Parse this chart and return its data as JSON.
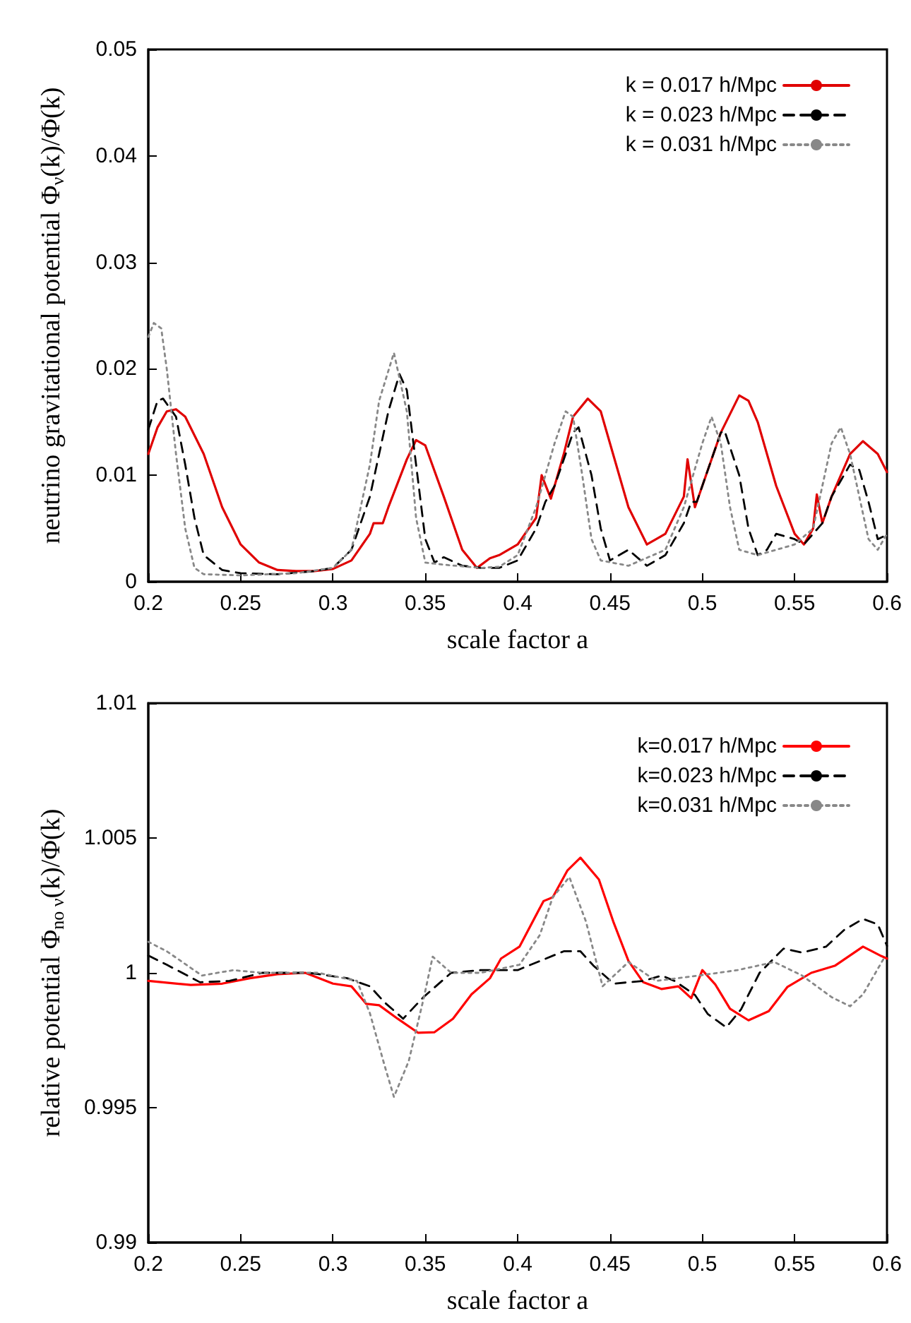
{
  "chart_data": [
    {
      "type": "line",
      "xlabel": "scale factor a",
      "ylabel": "neutrino gravitational potential Φ$_{ν}$(k)/Φ(k)",
      "xlim": [
        0.2,
        0.6
      ],
      "xticks": [
        0.2,
        0.25,
        0.3,
        0.35,
        0.4,
        0.45,
        0.5,
        0.55,
        0.6
      ],
      "ylim": [
        0,
        0.05
      ],
      "yticks": [
        0,
        0.01,
        0.02,
        0.03,
        0.04,
        0.05
      ],
      "grid": false,
      "legend": "top right",
      "marker": "none",
      "series": [
        {
          "name": "k = 0.017 h/Mpc",
          "color": "#e00000",
          "line_style": "solid",
          "x": [
            0.2,
            0.205,
            0.21,
            0.215,
            0.22,
            0.23,
            0.24,
            0.25,
            0.26,
            0.27,
            0.28,
            0.29,
            0.3,
            0.31,
            0.32,
            0.322,
            0.327,
            0.33,
            0.34,
            0.345,
            0.35,
            0.36,
            0.37,
            0.378,
            0.385,
            0.39,
            0.4,
            0.41,
            0.413,
            0.418,
            0.425,
            0.43,
            0.438,
            0.445,
            0.45,
            0.46,
            0.47,
            0.48,
            0.49,
            0.492,
            0.496,
            0.5,
            0.51,
            0.52,
            0.525,
            0.53,
            0.54,
            0.55,
            0.555,
            0.56,
            0.562,
            0.565,
            0.57,
            0.58,
            0.587,
            0.595,
            0.6
          ],
          "values": [
            0.012,
            0.0145,
            0.016,
            0.0162,
            0.0155,
            0.012,
            0.007,
            0.0035,
            0.0018,
            0.0011,
            0.001,
            0.001,
            0.0012,
            0.002,
            0.0045,
            0.0055,
            0.0055,
            0.007,
            0.0115,
            0.0133,
            0.0128,
            0.008,
            0.003,
            0.0013,
            0.0022,
            0.0025,
            0.0035,
            0.006,
            0.01,
            0.0078,
            0.012,
            0.0155,
            0.0172,
            0.016,
            0.013,
            0.007,
            0.0035,
            0.0045,
            0.008,
            0.0115,
            0.007,
            0.009,
            0.014,
            0.0175,
            0.017,
            0.015,
            0.009,
            0.0045,
            0.0035,
            0.005,
            0.0082,
            0.0055,
            0.008,
            0.012,
            0.0132,
            0.012,
            0.0103
          ]
        },
        {
          "name": "k = 0.023 h/Mpc",
          "color": "#000000",
          "line_style": "dashed",
          "x": [
            0.2,
            0.205,
            0.208,
            0.215,
            0.22,
            0.225,
            0.23,
            0.24,
            0.25,
            0.27,
            0.29,
            0.3,
            0.31,
            0.32,
            0.33,
            0.336,
            0.34,
            0.345,
            0.35,
            0.355,
            0.36,
            0.37,
            0.38,
            0.39,
            0.4,
            0.41,
            0.415,
            0.42,
            0.43,
            0.433,
            0.44,
            0.445,
            0.45,
            0.455,
            0.46,
            0.47,
            0.48,
            0.49,
            0.494,
            0.497,
            0.5,
            0.51,
            0.512,
            0.52,
            0.525,
            0.53,
            0.535,
            0.54,
            0.55,
            0.555,
            0.565,
            0.57,
            0.575,
            0.58,
            0.585,
            0.59,
            0.595,
            0.6
          ],
          "values": [
            0.0143,
            0.017,
            0.0172,
            0.0155,
            0.011,
            0.006,
            0.0025,
            0.0011,
            0.0008,
            0.0007,
            0.001,
            0.0013,
            0.003,
            0.008,
            0.016,
            0.0195,
            0.018,
            0.011,
            0.004,
            0.0018,
            0.0023,
            0.0015,
            0.0013,
            0.0013,
            0.002,
            0.005,
            0.0075,
            0.009,
            0.014,
            0.0145,
            0.01,
            0.005,
            0.002,
            0.0025,
            0.003,
            0.0015,
            0.0025,
            0.0055,
            0.0075,
            0.0075,
            0.009,
            0.014,
            0.0142,
            0.01,
            0.005,
            0.0025,
            0.003,
            0.0045,
            0.004,
            0.0035,
            0.0055,
            0.008,
            0.0095,
            0.011,
            0.0105,
            0.0075,
            0.004,
            0.0044
          ]
        },
        {
          "name": "k = 0.031 h/Mpc",
          "color": "#888888",
          "line_style": "dotted",
          "x": [
            0.2,
            0.203,
            0.207,
            0.21,
            0.215,
            0.22,
            0.225,
            0.23,
            0.25,
            0.28,
            0.3,
            0.31,
            0.32,
            0.325,
            0.333,
            0.34,
            0.345,
            0.35,
            0.36,
            0.38,
            0.39,
            0.4,
            0.41,
            0.42,
            0.426,
            0.43,
            0.435,
            0.44,
            0.445,
            0.46,
            0.48,
            0.49,
            0.5,
            0.505,
            0.51,
            0.515,
            0.52,
            0.53,
            0.55,
            0.56,
            0.565,
            0.57,
            0.575,
            0.58,
            0.585,
            0.59,
            0.595,
            0.6
          ],
          "values": [
            0.023,
            0.0243,
            0.0238,
            0.02,
            0.012,
            0.005,
            0.0013,
            0.0007,
            0.0006,
            0.0008,
            0.0013,
            0.003,
            0.011,
            0.017,
            0.0215,
            0.016,
            0.006,
            0.0018,
            0.0016,
            0.0013,
            0.0014,
            0.0025,
            0.007,
            0.013,
            0.016,
            0.0155,
            0.01,
            0.004,
            0.002,
            0.0015,
            0.003,
            0.007,
            0.013,
            0.0155,
            0.013,
            0.007,
            0.003,
            0.0025,
            0.0035,
            0.005,
            0.009,
            0.013,
            0.0145,
            0.012,
            0.008,
            0.004,
            0.003,
            0.0045
          ]
        }
      ]
    },
    {
      "type": "line",
      "xlabel": "scale factor a",
      "ylabel": "relative potential Φ$_{no ν}$(k)/Φ(k)",
      "xlim": [
        0.2,
        0.6
      ],
      "xticks": [
        0.2,
        0.25,
        0.3,
        0.35,
        0.4,
        0.45,
        0.5,
        0.55,
        0.6
      ],
      "ylim": [
        0.99,
        1.01
      ],
      "yticks": [
        0.99,
        0.995,
        1,
        1.005,
        1.01
      ],
      "grid": false,
      "legend": "top right",
      "marker": "none",
      "series": [
        {
          "name": "k=0.017 h/Mpc",
          "color": "#ff0000",
          "line_style": "solid",
          "x": [
            0.2,
            0.223,
            0.24,
            0.255,
            0.27,
            0.285,
            0.3,
            0.31,
            0.318,
            0.325,
            0.335,
            0.346,
            0.355,
            0.365,
            0.375,
            0.385,
            0.391,
            0.401,
            0.414,
            0.419,
            0.427,
            0.434,
            0.444,
            0.452,
            0.46,
            0.468,
            0.478,
            0.487,
            0.494,
            0.5,
            0.507,
            0.515,
            0.525,
            0.536,
            0.546,
            0.559,
            0.572,
            0.587,
            0.597,
            0.6
          ],
          "values": [
            0.9997,
            0.99955,
            0.9996,
            0.9998,
            0.99995,
            1.0,
            0.9996,
            0.9995,
            0.99885,
            0.9988,
            0.9983,
            0.99778,
            0.9978,
            0.9983,
            0.9992,
            0.9998,
            1.00053,
            1.00097,
            1.00266,
            1.0028,
            1.0038,
            1.00427,
            1.00346,
            1.00186,
            1.00044,
            0.99965,
            0.9994,
            0.9995,
            0.99906,
            1.0001,
            0.99957,
            0.99867,
            0.99824,
            0.99858,
            0.99947,
            1.0,
            1.00027,
            1.00097,
            1.00062,
            1.00053
          ]
        },
        {
          "name": "k=0.023 h/Mpc",
          "color": "#000000",
          "line_style": "dashed",
          "x": [
            0.2,
            0.21,
            0.228,
            0.244,
            0.2615,
            0.287,
            0.3077,
            0.32,
            0.328,
            0.338,
            0.349,
            0.364,
            0.38,
            0.4,
            0.406,
            0.425,
            0.434,
            0.441,
            0.452,
            0.468,
            0.478,
            0.485,
            0.496,
            0.503,
            0.513,
            0.521,
            0.531,
            0.544,
            0.554,
            0.567,
            0.577,
            0.587,
            0.595,
            0.6
          ],
          "values": [
            1.00064,
            1.0003,
            0.99965,
            0.9997,
            1.0,
            1.0,
            0.9998,
            0.9995,
            0.9989,
            0.9983,
            0.9991,
            1.0,
            1.0001,
            1.0001,
            1.00027,
            1.0008,
            1.0008,
            1.00027,
            0.9996,
            0.9997,
            0.9999,
            0.9997,
            0.99918,
            0.99847,
            0.99798,
            0.99865,
            1.0,
            1.0009,
            1.00075,
            1.00097,
            1.0016,
            1.002,
            1.0018,
            1.001
          ]
        },
        {
          "name": "k=0.031 h/Mpc",
          "color": "#888888",
          "line_style": "dotted",
          "x": [
            0.2,
            0.21,
            0.229,
            0.246,
            0.2615,
            0.292,
            0.313,
            0.32,
            0.328,
            0.333,
            0.341,
            0.349,
            0.354,
            0.364,
            0.38,
            0.401,
            0.412,
            0.419,
            0.428,
            0.437,
            0.446,
            0.46,
            0.475,
            0.498,
            0.519,
            0.539,
            0.554,
            0.57,
            0.58,
            0.587,
            0.598,
            0.6
          ],
          "values": [
            1.00115,
            1.0008,
            0.9999,
            1.0001,
            1.0,
            1.0,
            0.9997,
            0.9985,
            0.99655,
            0.9954,
            0.99672,
            0.99902,
            1.0006,
            1.0,
            1.0,
            1.0003,
            1.0014,
            1.0028,
            1.00355,
            1.0019,
            0.9995,
            1.0004,
            0.9997,
            0.9999,
            1.0001,
            1.0004,
            0.9999,
            0.9991,
            0.99876,
            0.9992,
            1.0005,
            1.0005
          ]
        }
      ]
    }
  ]
}
